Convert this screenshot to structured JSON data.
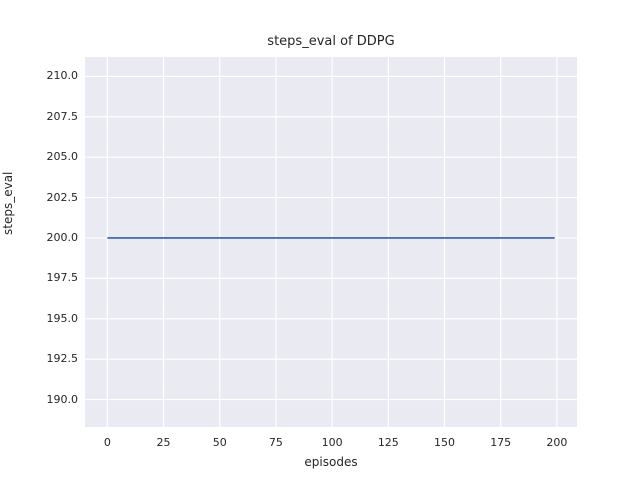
{
  "chart": {
    "title": "steps_eval of DDPG",
    "xlabel": "episodes",
    "ylabel": "steps_eval"
  },
  "chart_data": {
    "type": "line",
    "title": "steps_eval of DDPG",
    "xlabel": "episodes",
    "ylabel": "steps_eval",
    "series": [
      {
        "name": "steps_eval",
        "color": "#4c72b0",
        "x": [
          0,
          199
        ],
        "y": [
          200,
          200
        ]
      }
    ],
    "xticks": [
      0,
      25,
      50,
      75,
      100,
      125,
      150,
      175,
      200
    ],
    "ytick_labels": [
      "190.0",
      "192.5",
      "195.0",
      "197.5",
      "200.0",
      "202.5",
      "205.0",
      "207.5",
      "210.0"
    ],
    "xlim": [
      -9.95,
      208.95
    ],
    "ylim": [
      188.3,
      211.2
    ],
    "grid": true,
    "legend": "none",
    "plot_background": "#eaeaf2",
    "grid_color": "#ffffff",
    "text_color": "#262626"
  }
}
